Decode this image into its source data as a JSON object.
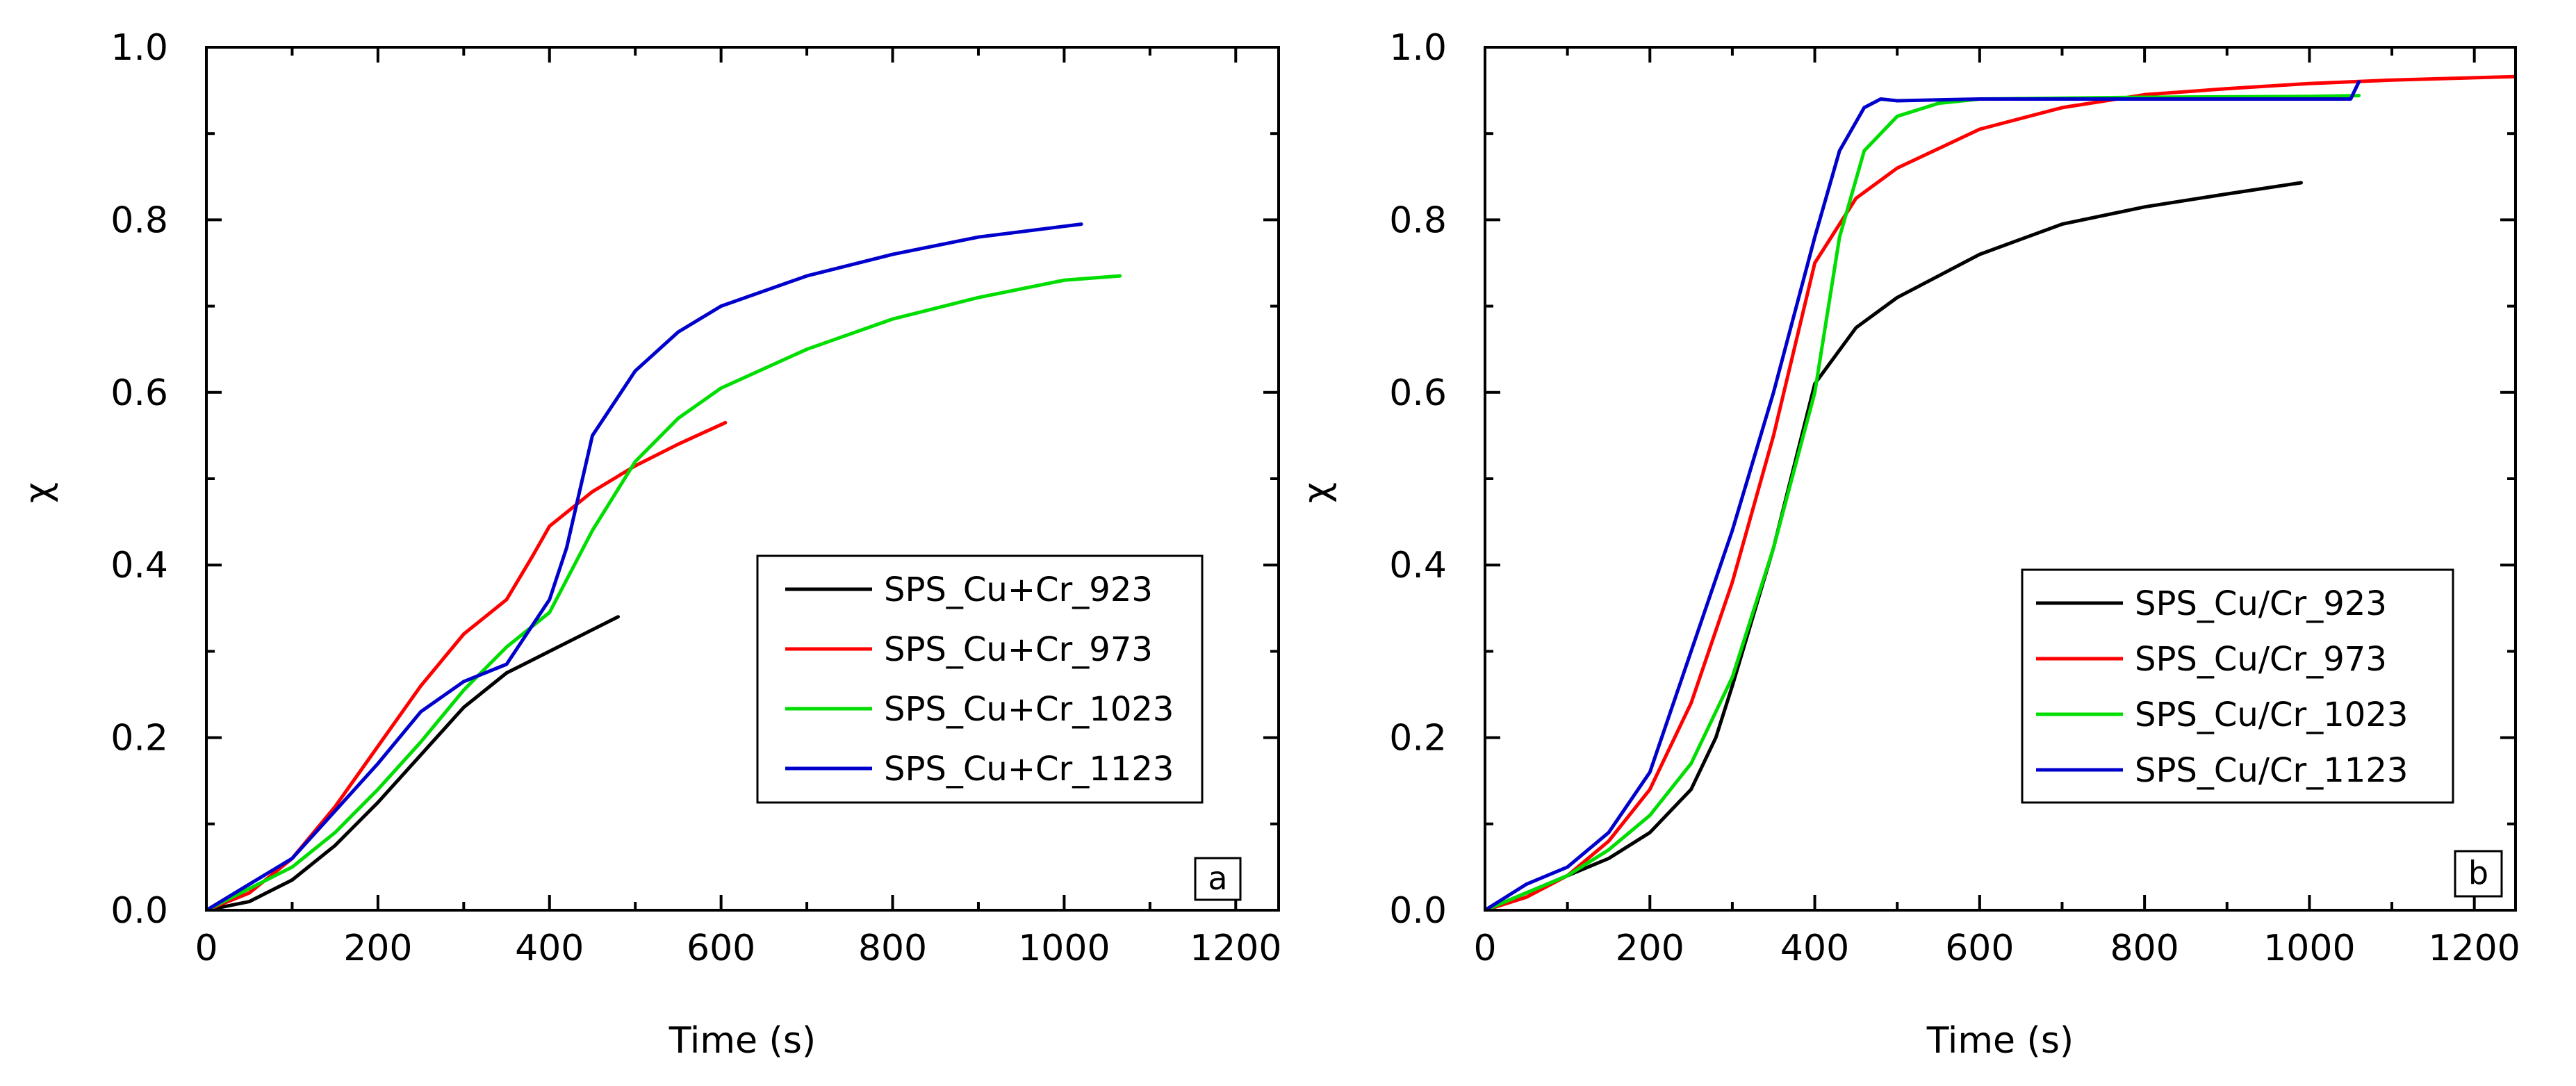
{
  "chart_data": [
    {
      "panel_id": "a",
      "type": "line",
      "title": "",
      "xlabel": "Time (s)",
      "ylabel": "χ",
      "xlim": [
        0,
        1250
      ],
      "ylim": [
        0,
        1.0
      ],
      "xticks": [
        0,
        200,
        400,
        600,
        800,
        1000,
        1200
      ],
      "xtick_labels": [
        "0",
        "200",
        "400",
        "600",
        "800",
        "1000",
        "1200"
      ],
      "yticks": [
        0,
        0.2,
        0.4,
        0.6,
        0.8,
        1.0
      ],
      "ytick_labels": [
        "0.0",
        "0.2",
        "0.4",
        "0.6",
        "0.8",
        "1.0"
      ],
      "grid": false,
      "legend_position": "center-right",
      "panel_label": "a",
      "series": [
        {
          "name": "SPS_Cu+Cr_923",
          "color": "#000000",
          "x": [
            0,
            50,
            100,
            150,
            200,
            250,
            300,
            350,
            400,
            450,
            480
          ],
          "y": [
            0,
            0.01,
            0.035,
            0.075,
            0.125,
            0.18,
            0.235,
            0.275,
            0.3,
            0.325,
            0.34
          ]
        },
        {
          "name": "SPS_Cu+Cr_973",
          "color": "#ff0000",
          "x": [
            0,
            50,
            100,
            150,
            200,
            250,
            300,
            350,
            380,
            400,
            450,
            500,
            550,
            605
          ],
          "y": [
            0,
            0.02,
            0.06,
            0.12,
            0.19,
            0.26,
            0.32,
            0.36,
            0.41,
            0.445,
            0.485,
            0.515,
            0.54,
            0.565
          ]
        },
        {
          "name": "SPS_Cu+Cr_1023",
          "color": "#00dd00",
          "x": [
            0,
            50,
            100,
            150,
            200,
            250,
            300,
            350,
            400,
            450,
            500,
            550,
            600,
            700,
            800,
            900,
            1000,
            1065
          ],
          "y": [
            0,
            0.025,
            0.05,
            0.09,
            0.14,
            0.195,
            0.255,
            0.305,
            0.345,
            0.44,
            0.52,
            0.57,
            0.605,
            0.65,
            0.685,
            0.71,
            0.73,
            0.735
          ]
        },
        {
          "name": "SPS_Cu+Cr_1123",
          "color": "#0000cc",
          "x": [
            0,
            50,
            100,
            150,
            200,
            250,
            300,
            350,
            400,
            420,
            450,
            500,
            550,
            600,
            700,
            800,
            900,
            1020
          ],
          "y": [
            0,
            0.03,
            0.06,
            0.115,
            0.17,
            0.23,
            0.265,
            0.285,
            0.36,
            0.42,
            0.55,
            0.625,
            0.67,
            0.7,
            0.735,
            0.76,
            0.78,
            0.795
          ]
        }
      ]
    },
    {
      "panel_id": "b",
      "type": "line",
      "title": "",
      "xlabel": "Time (s)",
      "ylabel": "χ",
      "xlim": [
        0,
        1250
      ],
      "ylim": [
        0,
        1.0
      ],
      "xticks": [
        0,
        200,
        400,
        600,
        800,
        1000,
        1200
      ],
      "xtick_labels": [
        "0",
        "200",
        "400",
        "600",
        "800",
        "1000",
        "1200"
      ],
      "yticks": [
        0,
        0.2,
        0.4,
        0.6,
        0.8,
        1.0
      ],
      "ytick_labels": [
        "0.0",
        "0.2",
        "0.4",
        "0.6",
        "0.8",
        "1.0"
      ],
      "grid": false,
      "legend_position": "center-right",
      "panel_label": "b",
      "series": [
        {
          "name": "SPS_Cu/Cr_923",
          "color": "#000000",
          "x": [
            0,
            50,
            100,
            150,
            200,
            250,
            280,
            300,
            350,
            400,
            450,
            500,
            600,
            700,
            800,
            900,
            990
          ],
          "y": [
            0,
            0.02,
            0.04,
            0.06,
            0.09,
            0.14,
            0.2,
            0.26,
            0.42,
            0.61,
            0.675,
            0.71,
            0.76,
            0.795,
            0.815,
            0.83,
            0.843
          ]
        },
        {
          "name": "SPS_Cu/Cr_973",
          "color": "#ff0000",
          "x": [
            0,
            50,
            100,
            150,
            200,
            250,
            300,
            350,
            400,
            450,
            500,
            600,
            700,
            800,
            900,
            1000,
            1100,
            1250
          ],
          "y": [
            0,
            0.015,
            0.04,
            0.08,
            0.14,
            0.24,
            0.38,
            0.55,
            0.75,
            0.825,
            0.86,
            0.905,
            0.93,
            0.945,
            0.952,
            0.958,
            0.962,
            0.966
          ]
        },
        {
          "name": "SPS_Cu/Cr_1023",
          "color": "#00dd00",
          "x": [
            0,
            50,
            100,
            150,
            200,
            250,
            300,
            350,
            400,
            430,
            460,
            500,
            550,
            600,
            800,
            1000,
            1060
          ],
          "y": [
            0,
            0.02,
            0.04,
            0.07,
            0.11,
            0.17,
            0.27,
            0.42,
            0.6,
            0.78,
            0.88,
            0.92,
            0.935,
            0.94,
            0.942,
            0.943,
            0.944
          ]
        },
        {
          "name": "SPS_Cu/Cr_1123",
          "color": "#0000cc",
          "x": [
            0,
            50,
            100,
            150,
            200,
            250,
            300,
            350,
            400,
            430,
            460,
            480,
            500,
            600,
            800,
            1000,
            1050,
            1060
          ],
          "y": [
            0,
            0.03,
            0.05,
            0.09,
            0.16,
            0.3,
            0.44,
            0.6,
            0.78,
            0.88,
            0.93,
            0.94,
            0.938,
            0.94,
            0.94,
            0.94,
            0.94,
            0.96
          ]
        }
      ]
    }
  ]
}
